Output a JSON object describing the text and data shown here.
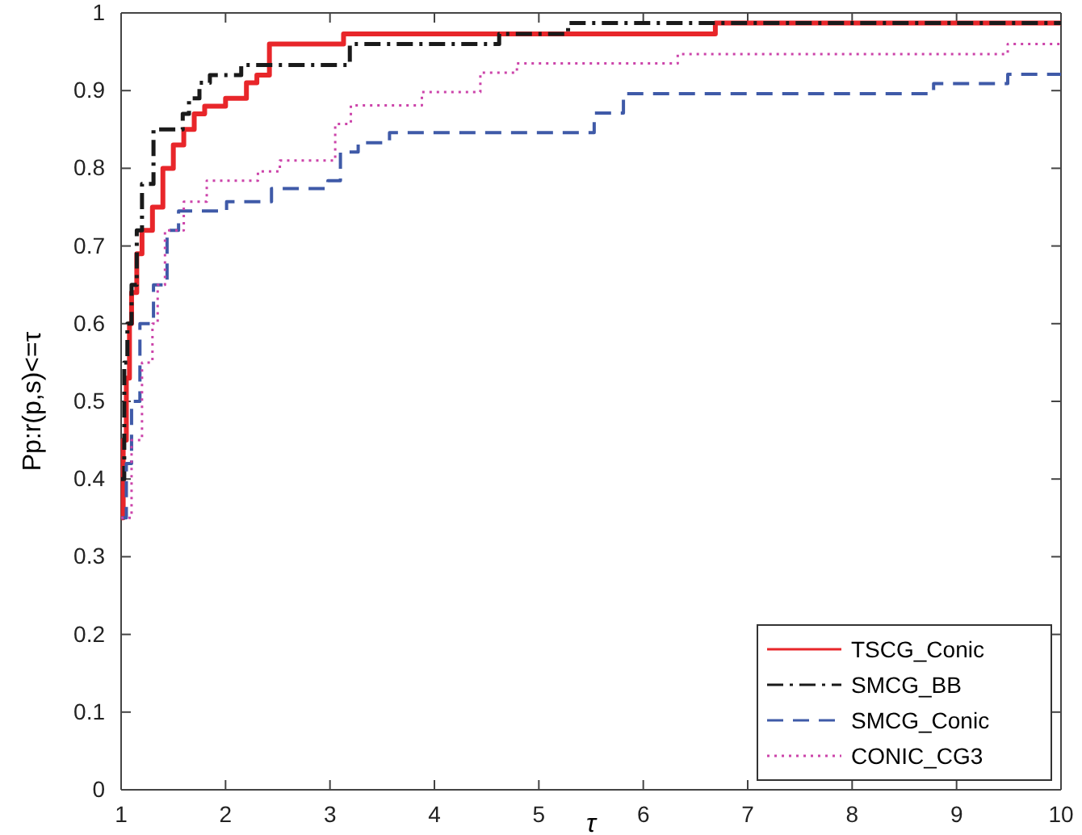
{
  "chart_data": {
    "type": "step",
    "xlabel": "τ",
    "ylabel": "Pp:r(p,s)<=τ",
    "xlim": [
      1,
      10
    ],
    "ylim": [
      0,
      1
    ],
    "xticks": [
      1,
      2,
      3,
      4,
      5,
      6,
      7,
      8,
      9,
      10
    ],
    "yticks": [
      0,
      0.1,
      0.2,
      0.3,
      0.4,
      0.5,
      0.6,
      0.7,
      0.8,
      0.9,
      1
    ],
    "legend": "bottom right",
    "grid": false,
    "series": [
      {
        "name": "TSCG_Conic",
        "color": "#e8262a",
        "line_style": "solid",
        "x": [
          1,
          1.02,
          1.05,
          1.08,
          1.1,
          1.15,
          1.2,
          1.3,
          1.4,
          1.5,
          1.6,
          1.7,
          1.8,
          2.0,
          2.2,
          2.3,
          2.42,
          3.13,
          6.69,
          10
        ],
        "values": [
          0.35,
          0.45,
          0.53,
          0.6,
          0.64,
          0.69,
          0.72,
          0.75,
          0.8,
          0.83,
          0.85,
          0.87,
          0.88,
          0.89,
          0.91,
          0.92,
          0.96,
          0.973,
          0.987,
          0.987
        ]
      },
      {
        "name": "SMCG_BB",
        "color": "#1a1a1a",
        "line_style": "dashdot",
        "x": [
          1,
          1.03,
          1.06,
          1.1,
          1.15,
          1.2,
          1.31,
          1.59,
          1.65,
          1.75,
          1.85,
          2.15,
          3.19,
          4.62,
          5.28,
          10
        ],
        "values": [
          0.4,
          0.55,
          0.6,
          0.65,
          0.72,
          0.78,
          0.85,
          0.87,
          0.89,
          0.91,
          0.92,
          0.933,
          0.96,
          0.973,
          0.987,
          0.987
        ]
      },
      {
        "name": "SMCG_Conic",
        "color": "#3f5aa8",
        "line_style": "dashed",
        "x": [
          1,
          1.05,
          1.1,
          1.18,
          1.31,
          1.44,
          1.55,
          2.01,
          2.44,
          2.98,
          3.1,
          3.27,
          3.57,
          5.53,
          5.81,
          8.78,
          9.49,
          10
        ],
        "values": [
          0.35,
          0.42,
          0.5,
          0.6,
          0.65,
          0.72,
          0.745,
          0.757,
          0.774,
          0.784,
          0.821,
          0.833,
          0.846,
          0.871,
          0.896,
          0.909,
          0.921,
          0.921
        ]
      },
      {
        "name": "CONIC_CG3",
        "color": "#cc44aa",
        "line_style": "dotted",
        "x": [
          1,
          1.1,
          1.2,
          1.3,
          1.35,
          1.42,
          1.6,
          1.82,
          2.31,
          2.52,
          3.05,
          3.2,
          3.88,
          4.44,
          4.79,
          6.33,
          9.49,
          10
        ],
        "values": [
          0.35,
          0.45,
          0.55,
          0.6,
          0.65,
          0.72,
          0.757,
          0.784,
          0.796,
          0.81,
          0.857,
          0.881,
          0.898,
          0.923,
          0.935,
          0.947,
          0.96,
          0.96
        ]
      }
    ]
  }
}
